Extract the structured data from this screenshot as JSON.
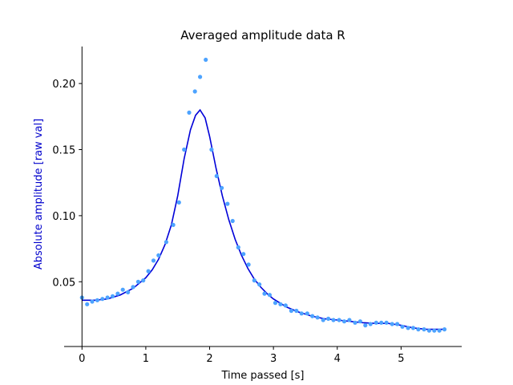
{
  "chart_data": {
    "type": "scatter",
    "title": "Averaged amplitude data R",
    "xlabel": "Time passed [s]",
    "ylabel": "Absolute amplitude [raw val]",
    "xlim": [
      -0.28,
      5.95
    ],
    "ylim": [
      0.001,
      0.228
    ],
    "xticks": [
      0,
      1,
      2,
      3,
      4,
      5
    ],
    "xtick_labels": [
      "0",
      "1",
      "2",
      "3",
      "4",
      "5"
    ],
    "yticks": [
      0.05,
      0.1,
      0.15,
      0.2
    ],
    "ytick_labels": [
      "0.05",
      "0.10",
      "0.15",
      "0.20"
    ],
    "grid": false,
    "colors": {
      "points": "#4da3ff",
      "fit_line": "#0000d8",
      "ylabel": "#0000cc"
    },
    "series": [
      {
        "kind": "scatter",
        "points": [
          [
            0.0,
            0.038
          ],
          [
            0.08,
            0.033
          ],
          [
            0.16,
            0.035
          ],
          [
            0.24,
            0.036
          ],
          [
            0.32,
            0.037
          ],
          [
            0.4,
            0.038
          ],
          [
            0.48,
            0.039
          ],
          [
            0.56,
            0.041
          ],
          [
            0.64,
            0.044
          ],
          [
            0.72,
            0.042
          ],
          [
            0.8,
            0.046
          ],
          [
            0.88,
            0.05
          ],
          [
            0.96,
            0.051
          ],
          [
            1.04,
            0.058
          ],
          [
            1.12,
            0.066
          ],
          [
            1.2,
            0.07
          ],
          [
            1.32,
            0.08
          ],
          [
            1.43,
            0.093
          ],
          [
            1.52,
            0.11
          ],
          [
            1.6,
            0.15
          ],
          [
            1.68,
            0.178
          ],
          [
            1.77,
            0.194
          ],
          [
            1.85,
            0.205
          ],
          [
            1.94,
            0.218
          ],
          [
            2.03,
            0.15
          ],
          [
            2.11,
            0.13
          ],
          [
            2.19,
            0.121
          ],
          [
            2.28,
            0.109
          ],
          [
            2.36,
            0.096
          ],
          [
            2.45,
            0.076
          ],
          [
            2.53,
            0.071
          ],
          [
            2.61,
            0.063
          ],
          [
            2.7,
            0.051
          ],
          [
            2.78,
            0.048
          ],
          [
            2.86,
            0.041
          ],
          [
            2.94,
            0.04
          ],
          [
            3.03,
            0.034
          ],
          [
            3.11,
            0.033
          ],
          [
            3.19,
            0.032
          ],
          [
            3.28,
            0.028
          ],
          [
            3.36,
            0.028
          ],
          [
            3.44,
            0.026
          ],
          [
            3.53,
            0.026
          ],
          [
            3.61,
            0.024
          ],
          [
            3.69,
            0.023
          ],
          [
            3.78,
            0.021
          ],
          [
            3.86,
            0.022
          ],
          [
            3.94,
            0.021
          ],
          [
            4.03,
            0.021
          ],
          [
            4.11,
            0.02
          ],
          [
            4.19,
            0.021
          ],
          [
            4.28,
            0.019
          ],
          [
            4.36,
            0.02
          ],
          [
            4.44,
            0.017
          ],
          [
            4.52,
            0.018
          ],
          [
            4.61,
            0.019
          ],
          [
            4.69,
            0.019
          ],
          [
            4.77,
            0.019
          ],
          [
            4.86,
            0.018
          ],
          [
            4.94,
            0.018
          ],
          [
            5.02,
            0.016
          ],
          [
            5.11,
            0.015
          ],
          [
            5.19,
            0.015
          ],
          [
            5.27,
            0.014
          ],
          [
            5.36,
            0.014
          ],
          [
            5.44,
            0.013
          ],
          [
            5.52,
            0.013
          ],
          [
            5.6,
            0.013
          ],
          [
            5.68,
            0.014
          ]
        ]
      },
      {
        "kind": "line",
        "points": [
          [
            0.0,
            0.036
          ],
          [
            0.2,
            0.036
          ],
          [
            0.4,
            0.037
          ],
          [
            0.6,
            0.04
          ],
          [
            0.8,
            0.045
          ],
          [
            1.0,
            0.053
          ],
          [
            1.1,
            0.059
          ],
          [
            1.2,
            0.067
          ],
          [
            1.3,
            0.078
          ],
          [
            1.4,
            0.093
          ],
          [
            1.5,
            0.115
          ],
          [
            1.6,
            0.143
          ],
          [
            1.7,
            0.165
          ],
          [
            1.78,
            0.176
          ],
          [
            1.85,
            0.18
          ],
          [
            1.93,
            0.174
          ],
          [
            2.0,
            0.16
          ],
          [
            2.1,
            0.136
          ],
          [
            2.2,
            0.115
          ],
          [
            2.3,
            0.097
          ],
          [
            2.4,
            0.082
          ],
          [
            2.5,
            0.07
          ],
          [
            2.6,
            0.06
          ],
          [
            2.7,
            0.052
          ],
          [
            2.8,
            0.046
          ],
          [
            2.9,
            0.041
          ],
          [
            3.0,
            0.037
          ],
          [
            3.2,
            0.031
          ],
          [
            3.4,
            0.027
          ],
          [
            3.6,
            0.024
          ],
          [
            3.8,
            0.022
          ],
          [
            4.0,
            0.021
          ],
          [
            4.2,
            0.02
          ],
          [
            4.4,
            0.019
          ],
          [
            4.6,
            0.0185
          ],
          [
            4.8,
            0.0185
          ],
          [
            5.0,
            0.017
          ],
          [
            5.2,
            0.015
          ],
          [
            5.4,
            0.014
          ],
          [
            5.6,
            0.014
          ],
          [
            5.68,
            0.014
          ]
        ]
      }
    ]
  }
}
